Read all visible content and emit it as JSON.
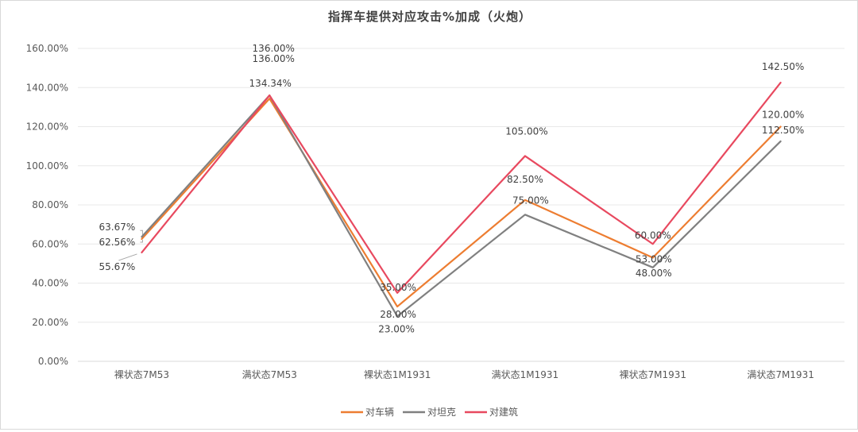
{
  "chart_data": {
    "type": "line",
    "title": "指挥车提供对应攻击%加成（火炮）",
    "xlabel": "",
    "ylabel": "",
    "categories": [
      "裸状态7M53",
      "满状态7M53",
      "裸状态1M1931",
      "满状态1M1931",
      "裸状态7M1931",
      "满状态7M1931"
    ],
    "ylim": [
      0,
      160
    ],
    "yticks": [
      "0.00%",
      "20.00%",
      "40.00%",
      "60.00%",
      "80.00%",
      "100.00%",
      "120.00%",
      "140.00%",
      "160.00%"
    ],
    "grid": true,
    "legend_position": "bottom",
    "series": [
      {
        "name": "对车辆",
        "color": "#ED7D31",
        "values": [
          62.56,
          134.34,
          28.0,
          82.5,
          53.0,
          120.0
        ],
        "labels": [
          "62.56%",
          "134.34%",
          "28.00%",
          "82.50%",
          "53.00%",
          "120.00%"
        ]
      },
      {
        "name": "对坦克",
        "color": "#808080",
        "values": [
          63.67,
          136.0,
          23.0,
          75.0,
          48.0,
          112.5
        ],
        "labels": [
          "63.67%",
          "136.00%",
          "23.00%",
          "75.00%",
          "48.00%",
          "112.50%"
        ]
      },
      {
        "name": "对建筑",
        "color": "#E8495F",
        "values": [
          55.67,
          136.0,
          35.0,
          105.0,
          60.0,
          142.5
        ],
        "labels": [
          "55.67%",
          "136.00%",
          "35.00%",
          "105.00%",
          "60.00%",
          "142.50%"
        ]
      }
    ]
  }
}
